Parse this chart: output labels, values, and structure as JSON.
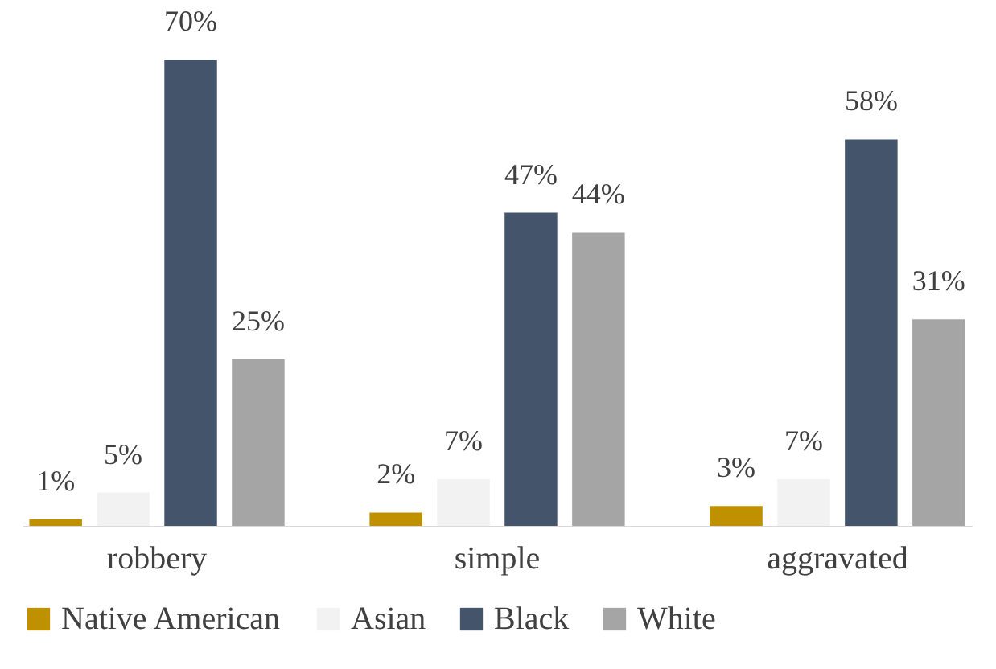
{
  "chart_data": {
    "type": "bar",
    "categories": [
      "robbery",
      "simple",
      "aggravated"
    ],
    "series": [
      {
        "name": "Native American",
        "color": "#bf9000",
        "values": [
          1,
          2,
          3
        ],
        "value_labels": [
          "1%",
          "2%",
          "3%"
        ]
      },
      {
        "name": "Asian",
        "color": "#f2f2f2",
        "values": [
          5,
          7,
          7
        ],
        "value_labels": [
          "5%",
          "7%",
          "7%"
        ]
      },
      {
        "name": "Black",
        "color": "#44546a",
        "values": [
          70,
          47,
          58
        ],
        "value_labels": [
          "70%",
          "47%",
          "58%"
        ]
      },
      {
        "name": "White",
        "color": "#a5a5a5",
        "values": [
          25,
          44,
          31
        ],
        "value_labels": [
          "25%",
          "44%",
          "31%"
        ]
      }
    ],
    "legend": "bottom",
    "grid": false
  }
}
